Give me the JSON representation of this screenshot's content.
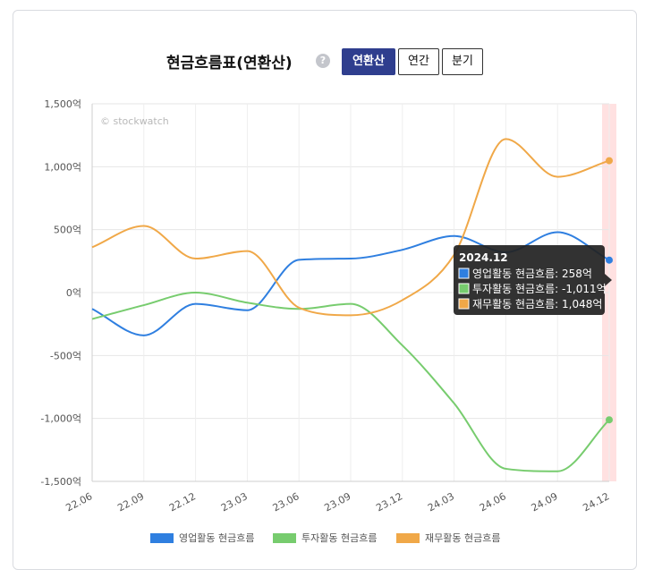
{
  "header": {
    "title": "현금흐름표(연환산)",
    "help_glyph": "?",
    "tabs": [
      {
        "label": "연환산",
        "active": true
      },
      {
        "label": "연간",
        "active": false
      },
      {
        "label": "분기",
        "active": false
      }
    ]
  },
  "watermark": "© stockwatch",
  "tooltip": {
    "title": "2024.12",
    "rows": [
      {
        "label": "영업활동 현금흐름: 258억",
        "color": "#2f7fe0"
      },
      {
        "label": "투자활동 현금흐름: -1,011억",
        "color": "#77cc6e"
      },
      {
        "label": "재무활동 현금흐름: 1,048억",
        "color": "#f0a848"
      }
    ]
  },
  "chart_data": {
    "type": "line",
    "unit": "억",
    "categories": [
      "22.06",
      "22.09",
      "22.12",
      "23.03",
      "23.06",
      "23.09",
      "23.12",
      "24.03",
      "24.06",
      "24.09",
      "24.12"
    ],
    "yticks": [
      "1,500억",
      "1,000억",
      "500억",
      "0억",
      "-500억",
      "-1,000억",
      "-1,500억"
    ],
    "ylim": [
      -1500,
      1500
    ],
    "ytick_values": [
      1500,
      1000,
      500,
      0,
      -500,
      -1000,
      -1500
    ],
    "highlight_category": "24.12",
    "legend_position": "bottom",
    "grid": true,
    "series": [
      {
        "name": "영업활동 현금흐름",
        "color": "#2f7fe0",
        "values": [
          -130,
          -340,
          -90,
          -140,
          260,
          270,
          340,
          450,
          320,
          480,
          258
        ]
      },
      {
        "name": "투자활동 현금흐름",
        "color": "#77cc6e",
        "values": [
          -210,
          -100,
          0,
          -80,
          -130,
          -90,
          -420,
          -880,
          -1400,
          -1420,
          -1011
        ]
      },
      {
        "name": "재무활동 현금흐름",
        "color": "#f0a848",
        "values": [
          360,
          530,
          270,
          330,
          -120,
          -180,
          -60,
          300,
          1220,
          920,
          1048
        ]
      }
    ]
  }
}
